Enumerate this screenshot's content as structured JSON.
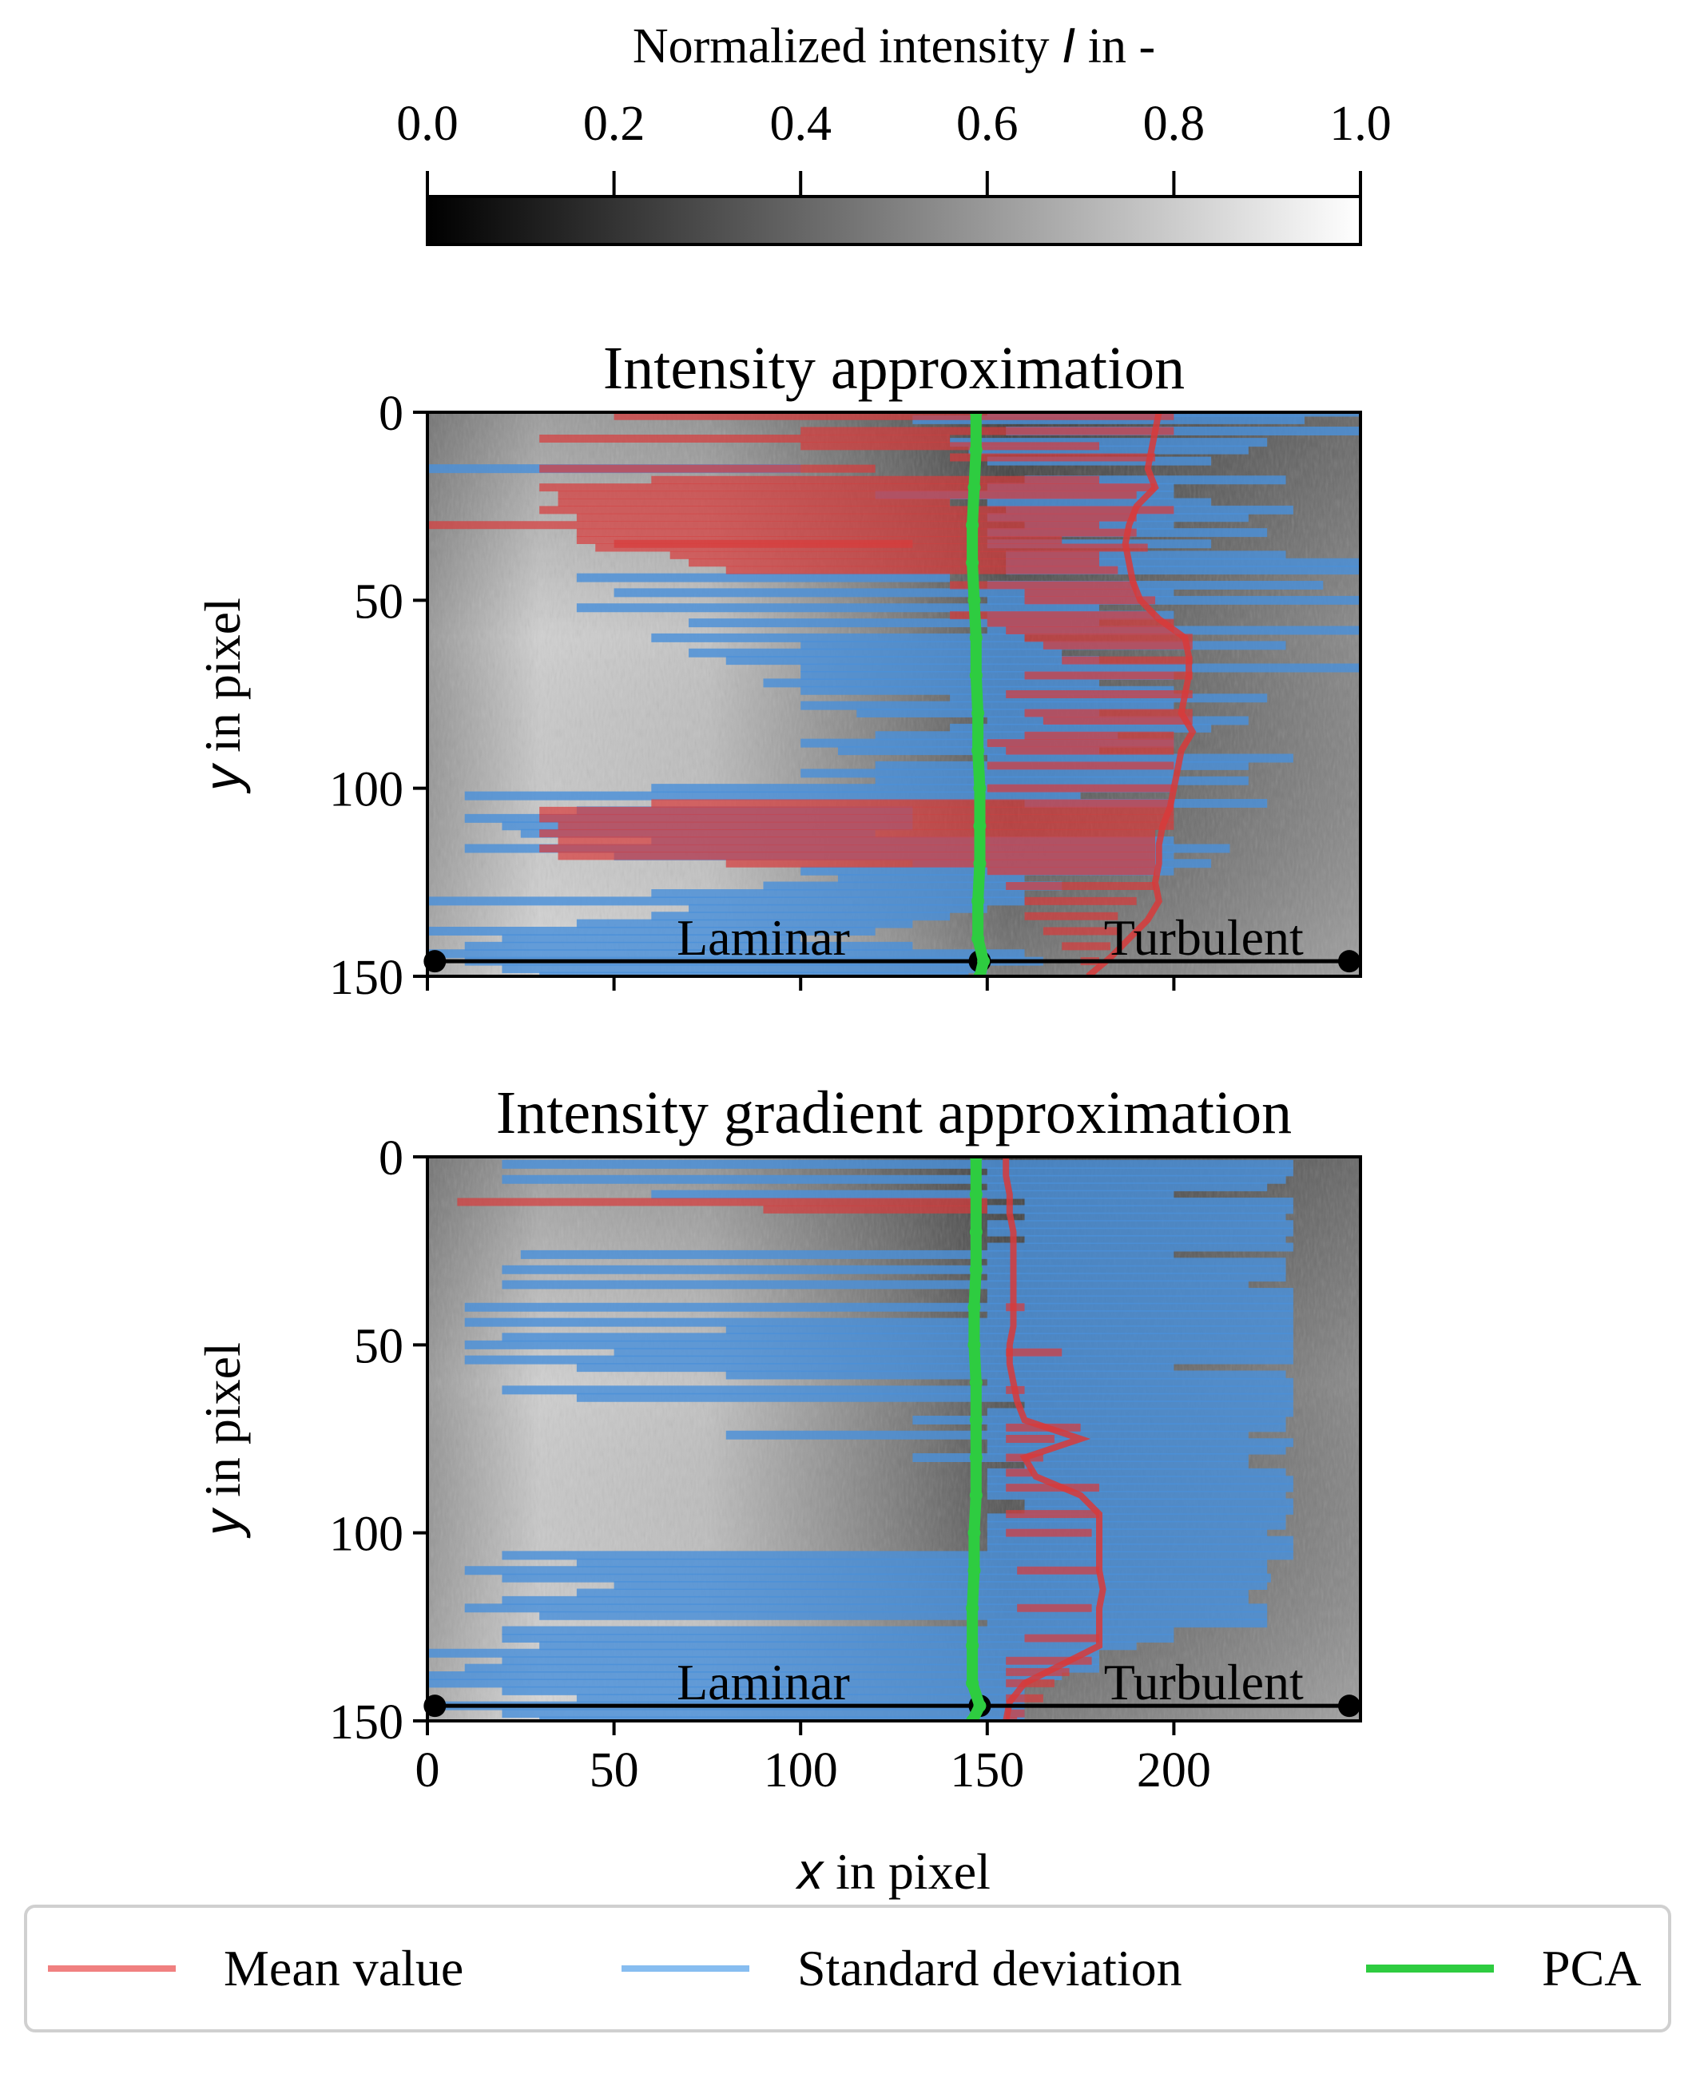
{
  "colorbar": {
    "label_prefix": "Normalized intensity ",
    "label_symbol": "I",
    "label_suffix": " in -",
    "ticks": [
      "0.0",
      "0.2",
      "0.4",
      "0.6",
      "0.8",
      "1.0"
    ],
    "range": [
      0,
      1
    ]
  },
  "colors": {
    "mean": "#d83a3a",
    "std": "#4a90d9",
    "pca": "#2ecc40",
    "legend_mean": "#f08080",
    "legend_std": "#87bdf0"
  },
  "chart_data": [
    {
      "type": "line",
      "title": "Intensity approximation",
      "xlabel_symbol": "x",
      "xlabel_suffix": " in pixel",
      "ylabel_symbol": "y",
      "ylabel_suffix": " in pixel",
      "xlim": [
        0,
        250
      ],
      "ylim": [
        150,
        0
      ],
      "yticks": [
        0,
        50,
        100,
        150
      ],
      "xticks": [
        0,
        50,
        100,
        150,
        200
      ],
      "annotations": [
        {
          "text": "Laminar",
          "x": 90,
          "y": 140
        },
        {
          "text": "Turbulent",
          "x": 208,
          "y": 140
        }
      ],
      "reference_line": {
        "y": 146,
        "x": [
          2,
          148,
          247
        ]
      },
      "mean_boundary": {
        "y": [
          0,
          5,
          10,
          15,
          20,
          25,
          30,
          35,
          40,
          45,
          50,
          55,
          60,
          65,
          70,
          75,
          80,
          85,
          90,
          95,
          100,
          105,
          110,
          115,
          120,
          125,
          130,
          135,
          140,
          145,
          150
        ],
        "x": [
          196,
          195,
          194,
          193,
          195,
          190,
          188,
          187,
          188,
          189,
          191,
          196,
          203,
          204,
          204,
          203,
          202,
          205,
          202,
          201,
          200,
          199,
          197,
          196,
          196,
          195,
          196,
          193,
          188,
          183,
          177
        ]
      },
      "pca_boundary": {
        "y": [
          0,
          10,
          20,
          30,
          40,
          50,
          60,
          70,
          80,
          90,
          100,
          110,
          120,
          130,
          140,
          146,
          150
        ],
        "x": [
          147,
          147,
          146.5,
          146,
          146,
          146.5,
          147,
          147,
          147.5,
          147.5,
          148,
          148,
          148,
          147.5,
          147.5,
          149,
          148
        ]
      },
      "std_segments": [
        [
          0,
          150,
          250
        ],
        [
          2,
          130,
          235
        ],
        [
          5,
          155,
          250
        ],
        [
          8,
          140,
          225
        ],
        [
          10,
          145,
          220
        ],
        [
          13,
          150,
          210
        ],
        [
          15,
          0,
          100
        ],
        [
          18,
          160,
          230
        ],
        [
          20,
          150,
          200
        ],
        [
          22,
          120,
          200
        ],
        [
          24,
          150,
          210
        ],
        [
          26,
          155,
          232
        ],
        [
          28,
          150,
          220
        ],
        [
          30,
          160,
          200
        ],
        [
          32,
          150,
          225
        ],
        [
          35,
          150,
          210
        ],
        [
          38,
          155,
          230
        ],
        [
          40,
          155,
          250
        ],
        [
          42,
          155,
          250
        ],
        [
          44,
          40,
          140
        ],
        [
          46,
          150,
          240
        ],
        [
          48,
          50,
          200
        ],
        [
          50,
          150,
          250
        ],
        [
          52,
          40,
          180
        ],
        [
          54,
          150,
          200
        ],
        [
          56,
          70,
          180
        ],
        [
          58,
          150,
          250
        ],
        [
          60,
          60,
          160
        ],
        [
          62,
          100,
          230
        ],
        [
          64,
          70,
          170
        ],
        [
          66,
          80,
          180
        ],
        [
          68,
          100,
          250
        ],
        [
          70,
          100,
          200
        ],
        [
          72,
          90,
          180
        ],
        [
          74,
          100,
          200
        ],
        [
          76,
          140,
          225
        ],
        [
          78,
          100,
          200
        ],
        [
          80,
          115,
          180
        ],
        [
          82,
          150,
          220
        ],
        [
          84,
          140,
          210
        ],
        [
          86,
          120,
          185
        ],
        [
          88,
          100,
          200
        ],
        [
          90,
          110,
          180
        ],
        [
          92,
          150,
          232
        ],
        [
          94,
          120,
          220
        ],
        [
          96,
          100,
          200
        ],
        [
          98,
          120,
          220
        ],
        [
          100,
          60,
          200
        ],
        [
          102,
          10,
          175
        ],
        [
          104,
          160,
          225
        ],
        [
          106,
          40,
          130
        ],
        [
          108,
          10,
          130
        ],
        [
          110,
          20,
          130
        ],
        [
          112,
          25,
          120
        ],
        [
          114,
          60,
          200
        ],
        [
          116,
          10,
          215
        ],
        [
          118,
          50,
          200
        ],
        [
          120,
          130,
          210
        ],
        [
          122,
          100,
          200
        ],
        [
          124,
          110,
          160
        ],
        [
          126,
          90,
          170
        ],
        [
          128,
          60,
          160
        ],
        [
          130,
          0,
          160
        ],
        [
          132,
          70,
          150
        ],
        [
          134,
          60,
          140
        ],
        [
          136,
          40,
          130
        ],
        [
          138,
          0,
          120
        ],
        [
          140,
          20,
          100
        ],
        [
          142,
          10,
          130
        ],
        [
          144,
          0,
          160
        ],
        [
          146,
          10,
          165
        ],
        [
          148,
          20,
          150
        ],
        [
          150,
          30,
          145
        ]
      ],
      "mean_segments": [
        [
          1,
          50,
          200
        ],
        [
          5,
          100,
          200
        ],
        [
          7,
          30,
          140
        ],
        [
          9,
          100,
          180
        ],
        [
          12,
          140,
          195
        ],
        [
          15,
          30,
          120
        ],
        [
          18,
          60,
          180
        ],
        [
          20,
          30,
          195
        ],
        [
          22,
          35,
          190
        ],
        [
          24,
          35,
          140
        ],
        [
          26,
          30,
          200
        ],
        [
          28,
          40,
          190
        ],
        [
          30,
          0,
          180
        ],
        [
          32,
          40,
          190
        ],
        [
          34,
          40,
          170
        ],
        [
          35,
          50,
          130
        ],
        [
          36,
          45,
          193
        ],
        [
          38,
          65,
          180
        ],
        [
          40,
          70,
          180
        ],
        [
          42,
          80,
          185
        ],
        [
          46,
          140,
          190
        ],
        [
          48,
          160,
          190
        ],
        [
          50,
          160,
          195
        ],
        [
          54,
          140,
          195
        ],
        [
          56,
          150,
          200
        ],
        [
          58,
          155,
          200
        ],
        [
          60,
          160,
          205
        ],
        [
          62,
          165,
          205
        ],
        [
          66,
          170,
          205
        ],
        [
          70,
          160,
          205
        ],
        [
          75,
          155,
          205
        ],
        [
          80,
          160,
          205
        ],
        [
          82,
          165,
          205
        ],
        [
          86,
          160,
          200
        ],
        [
          88,
          150,
          200
        ],
        [
          90,
          155,
          200
        ],
        [
          94,
          150,
          200
        ],
        [
          100,
          150,
          200
        ],
        [
          104,
          60,
          200
        ],
        [
          106,
          30,
          200
        ],
        [
          108,
          30,
          200
        ],
        [
          110,
          35,
          200
        ],
        [
          112,
          30,
          195
        ],
        [
          114,
          35,
          195
        ],
        [
          116,
          30,
          195
        ],
        [
          118,
          35,
          195
        ],
        [
          120,
          80,
          195
        ],
        [
          122,
          150,
          195
        ],
        [
          126,
          155,
          195
        ],
        [
          130,
          160,
          190
        ],
        [
          134,
          160,
          185
        ],
        [
          138,
          165,
          185
        ],
        [
          142,
          170,
          183
        ],
        [
          146,
          175,
          180
        ]
      ]
    },
    {
      "type": "line",
      "title": "Intensity gradient approximation",
      "xlabel_symbol": "x",
      "xlabel_suffix": " in pixel",
      "ylabel_symbol": "y",
      "ylabel_suffix": " in pixel",
      "xlim": [
        0,
        250
      ],
      "ylim": [
        150,
        0
      ],
      "yticks": [
        0,
        50,
        100,
        150
      ],
      "xticks": [
        0,
        50,
        100,
        150,
        200
      ],
      "annotations": [
        {
          "text": "Laminar",
          "x": 90,
          "y": 140
        },
        {
          "text": "Turbulent",
          "x": 208,
          "y": 140
        }
      ],
      "reference_line": {
        "y": 146,
        "x": [
          2,
          148,
          247
        ]
      },
      "mean_boundary": {
        "y": [
          0,
          5,
          10,
          15,
          20,
          25,
          30,
          35,
          40,
          45,
          50,
          55,
          60,
          65,
          70,
          75,
          80,
          85,
          90,
          95,
          100,
          105,
          110,
          115,
          120,
          125,
          130,
          135,
          140,
          145,
          150
        ],
        "x": [
          155,
          155,
          156,
          156,
          157,
          157,
          157,
          157,
          157,
          157,
          156,
          156,
          157,
          158,
          160,
          175,
          160,
          163,
          175,
          180,
          180,
          180,
          180,
          181,
          180,
          180,
          180,
          170,
          160,
          156,
          155
        ]
      },
      "pca_boundary": {
        "y": [
          0,
          10,
          20,
          30,
          40,
          50,
          60,
          70,
          80,
          90,
          100,
          110,
          120,
          130,
          140,
          146,
          150
        ],
        "x": [
          147,
          147,
          147,
          147,
          146.5,
          146.5,
          147,
          147,
          147,
          147,
          146.5,
          146.5,
          146,
          146,
          146,
          148,
          146
        ]
      },
      "std_segments": [
        [
          2,
          20,
          232
        ],
        [
          4,
          150,
          232
        ],
        [
          6,
          20,
          230
        ],
        [
          8,
          150,
          225
        ],
        [
          10,
          60,
          200
        ],
        [
          12,
          160,
          232
        ],
        [
          14,
          150,
          232
        ],
        [
          16,
          160,
          230
        ],
        [
          18,
          150,
          232
        ],
        [
          20,
          150,
          232
        ],
        [
          22,
          160,
          230
        ],
        [
          24,
          150,
          232
        ],
        [
          26,
          25,
          200
        ],
        [
          28,
          150,
          230
        ],
        [
          30,
          20,
          230
        ],
        [
          32,
          150,
          230
        ],
        [
          34,
          20,
          220
        ],
        [
          36,
          150,
          232
        ],
        [
          38,
          150,
          232
        ],
        [
          40,
          10,
          232
        ],
        [
          42,
          150,
          232
        ],
        [
          44,
          10,
          232
        ],
        [
          46,
          80,
          232
        ],
        [
          48,
          20,
          232
        ],
        [
          50,
          10,
          232
        ],
        [
          52,
          50,
          232
        ],
        [
          54,
          10,
          232
        ],
        [
          56,
          40,
          200
        ],
        [
          58,
          80,
          230
        ],
        [
          60,
          150,
          232
        ],
        [
          62,
          20,
          232
        ],
        [
          64,
          40,
          232
        ],
        [
          66,
          160,
          232
        ],
        [
          68,
          150,
          232
        ],
        [
          70,
          130,
          230
        ],
        [
          72,
          150,
          230
        ],
        [
          74,
          80,
          220
        ],
        [
          76,
          150,
          232
        ],
        [
          78,
          150,
          230
        ],
        [
          80,
          130,
          220
        ],
        [
          82,
          160,
          220
        ],
        [
          84,
          150,
          230
        ],
        [
          86,
          150,
          232
        ],
        [
          88,
          150,
          232
        ],
        [
          90,
          150,
          230
        ],
        [
          92,
          160,
          232
        ],
        [
          94,
          160,
          232
        ],
        [
          96,
          150,
          230
        ],
        [
          98,
          150,
          230
        ],
        [
          100,
          150,
          225
        ],
        [
          102,
          150,
          232
        ],
        [
          104,
          150,
          232
        ],
        [
          106,
          20,
          232
        ],
        [
          108,
          40,
          225
        ],
        [
          110,
          10,
          225
        ],
        [
          112,
          20,
          226
        ],
        [
          114,
          50,
          225
        ],
        [
          116,
          40,
          220
        ],
        [
          118,
          20,
          220
        ],
        [
          120,
          10,
          225
        ],
        [
          122,
          30,
          225
        ],
        [
          124,
          150,
          225
        ],
        [
          126,
          20,
          200
        ],
        [
          128,
          20,
          200
        ],
        [
          130,
          30,
          190
        ],
        [
          132,
          0,
          180
        ],
        [
          134,
          20,
          180
        ],
        [
          136,
          10,
          180
        ],
        [
          138,
          0,
          170
        ],
        [
          140,
          0,
          160
        ],
        [
          142,
          20,
          160
        ],
        [
          144,
          40,
          160
        ],
        [
          146,
          0,
          160
        ],
        [
          148,
          20,
          160
        ],
        [
          150,
          30,
          160
        ]
      ],
      "mean_segments": [
        [
          12,
          8,
          150
        ],
        [
          14,
          90,
          150
        ],
        [
          40,
          155,
          160
        ],
        [
          52,
          155,
          170
        ],
        [
          62,
          155,
          160
        ],
        [
          72,
          155,
          175
        ],
        [
          75,
          155,
          168
        ],
        [
          80,
          155,
          165
        ],
        [
          84,
          155,
          162
        ],
        [
          88,
          155,
          180
        ],
        [
          95,
          155,
          180
        ],
        [
          100,
          155,
          178
        ],
        [
          110,
          158,
          180
        ],
        [
          120,
          158,
          178
        ],
        [
          128,
          160,
          180
        ],
        [
          134,
          155,
          178
        ],
        [
          137,
          155,
          172
        ],
        [
          140,
          155,
          168
        ],
        [
          144,
          155,
          165
        ],
        [
          148,
          155,
          160
        ],
        [
          150,
          155,
          158
        ]
      ]
    }
  ],
  "legend": {
    "items": [
      {
        "label": "Mean value"
      },
      {
        "label": "Standard deviation"
      },
      {
        "label": "PCA"
      }
    ]
  }
}
